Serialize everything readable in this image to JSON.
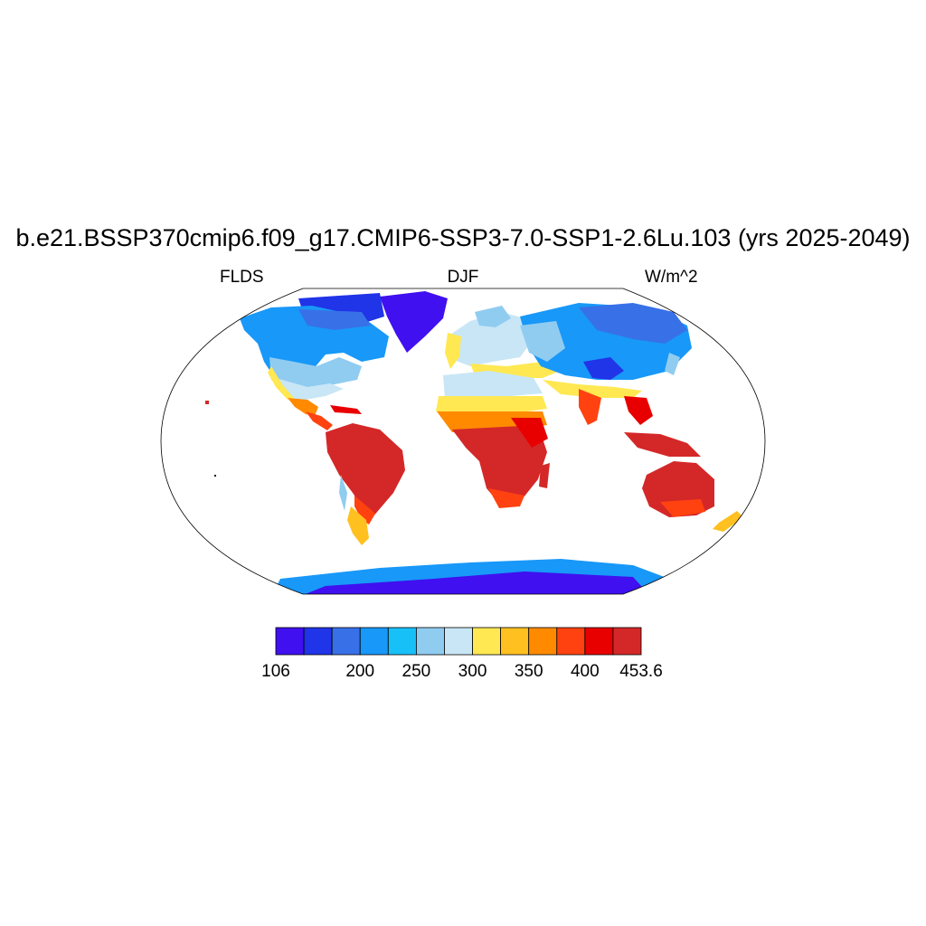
{
  "title": "b.e21.BSSP370cmip6.f09_g17.CMIP6-SSP3-7.0-SSP1-2.6Lu.103 (yrs 2025-2049)",
  "left_label": "FLDS",
  "center_label": "DJF",
  "right_label": "W/m^2",
  "colorbar": {
    "colors": [
      "#4010f0",
      "#2034e8",
      "#3870e8",
      "#1898f8",
      "#18c0f8",
      "#90ccf0",
      "#c8e6f6",
      "#ffe852",
      "#ffc020",
      "#ff8a00",
      "#ff4210",
      "#e80000",
      "#d42828"
    ],
    "tick_labels": [
      {
        "slot": 0,
        "text": "106"
      },
      {
        "slot": 3,
        "text": "200"
      },
      {
        "slot": 5,
        "text": "250"
      },
      {
        "slot": 7,
        "text": "300"
      },
      {
        "slot": 9,
        "text": "350"
      },
      {
        "slot": 11,
        "text": "400"
      },
      {
        "slot": 13,
        "text": "453.6"
      }
    ]
  }
}
